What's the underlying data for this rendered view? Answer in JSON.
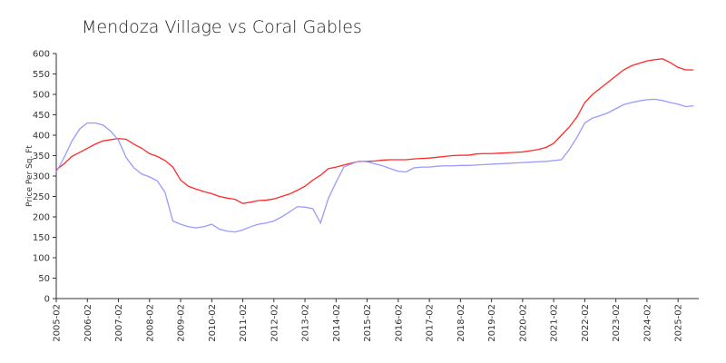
{
  "chart_data": {
    "type": "line",
    "title": "Mendoza Village vs Coral Gables",
    "y_label": "Price Per Sq. Ft",
    "x": [
      "2005-02",
      "2005-05",
      "2005-08",
      "2005-11",
      "2006-02",
      "2006-05",
      "2006-08",
      "2006-11",
      "2007-02",
      "2007-05",
      "2007-08",
      "2007-11",
      "2008-02",
      "2008-05",
      "2008-08",
      "2008-11",
      "2009-02",
      "2009-05",
      "2009-08",
      "2009-11",
      "2010-02",
      "2010-05",
      "2010-08",
      "2010-11",
      "2011-02",
      "2011-05",
      "2011-08",
      "2011-11",
      "2012-02",
      "2012-05",
      "2012-08",
      "2012-11",
      "2013-02",
      "2013-05",
      "2013-08",
      "2013-11",
      "2014-02",
      "2014-05",
      "2014-08",
      "2014-11",
      "2015-02",
      "2015-05",
      "2015-08",
      "2015-11",
      "2016-02",
      "2016-05",
      "2016-08",
      "2016-11",
      "2017-02",
      "2017-05",
      "2017-08",
      "2017-11",
      "2018-02",
      "2018-05",
      "2018-08",
      "2018-11",
      "2019-02",
      "2019-05",
      "2019-08",
      "2019-11",
      "2020-02",
      "2020-05",
      "2020-08",
      "2020-11",
      "2021-02",
      "2021-05",
      "2021-08",
      "2021-11",
      "2022-02",
      "2022-05",
      "2022-08",
      "2022-11",
      "2023-02",
      "2023-05",
      "2023-08",
      "2023-11",
      "2024-02",
      "2024-05",
      "2024-08",
      "2024-11",
      "2025-02",
      "2025-05",
      "2025-08"
    ],
    "series": [
      {
        "color": "#ff2a2a",
        "values": [
          315,
          330,
          348,
          358,
          368,
          378,
          386,
          389,
          392,
          390,
          378,
          368,
          355,
          348,
          338,
          322,
          290,
          275,
          268,
          262,
          257,
          250,
          246,
          243,
          233,
          236,
          240,
          241,
          244,
          250,
          256,
          265,
          275,
          290,
          302,
          318,
          322,
          327,
          332,
          336,
          336,
          337,
          339,
          340,
          340,
          340,
          342,
          343,
          344,
          346,
          348,
          350,
          351,
          351,
          354,
          355,
          355,
          356,
          357,
          358,
          359,
          362,
          365,
          370,
          380,
          400,
          420,
          445,
          480,
          500,
          515,
          530,
          545,
          560,
          570,
          576,
          582,
          585,
          587,
          578,
          566,
          560,
          560
        ]
      },
      {
        "color": "#9999ff",
        "values": [
          310,
          345,
          385,
          415,
          430,
          430,
          425,
          410,
          388,
          345,
          320,
          305,
          298,
          288,
          260,
          190,
          182,
          176,
          173,
          176,
          182,
          170,
          165,
          163,
          168,
          176,
          182,
          185,
          190,
          200,
          212,
          225,
          224,
          220,
          185,
          245,
          285,
          322,
          330,
          337,
          335,
          330,
          325,
          318,
          312,
          310,
          320,
          322,
          322,
          324,
          325,
          325,
          326,
          326,
          327,
          328,
          329,
          330,
          331,
          332,
          333,
          334,
          335,
          336,
          338,
          340,
          365,
          395,
          430,
          442,
          448,
          455,
          465,
          475,
          480,
          484,
          487,
          488,
          485,
          480,
          476,
          470,
          472
        ]
      }
    ],
    "xlim": [
      "2005-02",
      "2025-10"
    ],
    "xticks": [
      "2005-02",
      "2006-02",
      "2007-02",
      "2008-02",
      "2009-02",
      "2010-02",
      "2011-02",
      "2012-02",
      "2013-02",
      "2014-02",
      "2015-02",
      "2016-02",
      "2017-02",
      "2018-02",
      "2019-02",
      "2020-02",
      "2021-02",
      "2022-02",
      "2023-02",
      "2024-02",
      "2025-02"
    ],
    "ylim": [
      0,
      600
    ],
    "yticks": [
      0,
      50,
      100,
      150,
      200,
      250,
      300,
      350,
      400,
      450,
      500,
      550,
      600
    ],
    "grid": false
  }
}
